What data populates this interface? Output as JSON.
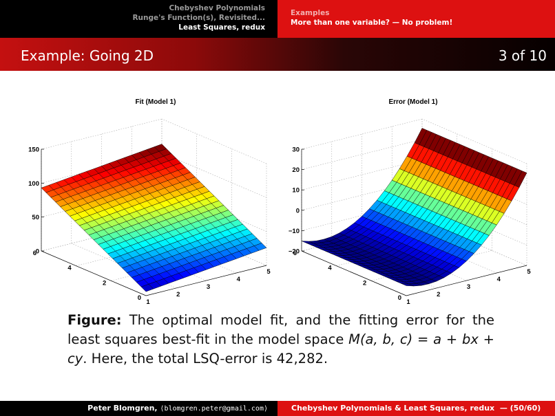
{
  "header": {
    "sections": [
      "Chebyshev Polynomials",
      "Runge's Function(s), Revisited...",
      "Least Squares, redux"
    ],
    "active_section": 2,
    "subsections": [
      "Examples",
      "More than one variable? — No problem!"
    ],
    "active_subsection": 1
  },
  "slide": {
    "title": "Example: Going 2D",
    "page": "3 of 10"
  },
  "figure": {
    "plots": [
      {
        "title": "Fit (Model 1)",
        "z_ticks": [
          "0",
          "50",
          "100",
          "150"
        ],
        "x_ticks": [
          "1",
          "2",
          "3",
          "4",
          "5"
        ],
        "y_ticks": [
          "0",
          "2",
          "4",
          "6"
        ]
      },
      {
        "title": "Error (Model 1)",
        "z_ticks": [
          "−20",
          "−10",
          "0",
          "10",
          "20",
          "30"
        ],
        "x_ticks": [
          "1",
          "2",
          "3",
          "4",
          "5"
        ],
        "y_ticks": [
          "0",
          "2",
          "4",
          "6"
        ]
      }
    ]
  },
  "caption": {
    "label": "Figure:",
    "text1": " The optimal model fit, and the fitting error for the least squares best-fit in the model space ",
    "model": "M(a, b, c) = a + bx + cy",
    "text2": ". Here, the total LSQ-error is 42,282."
  },
  "footer": {
    "author": "Peter Blomgren, ",
    "email": "⟨blomgren.peter@gmail.com⟩",
    "course": "Chebyshev Polynomials & Least Squares, redux",
    "page": "— (50/60)"
  }
}
